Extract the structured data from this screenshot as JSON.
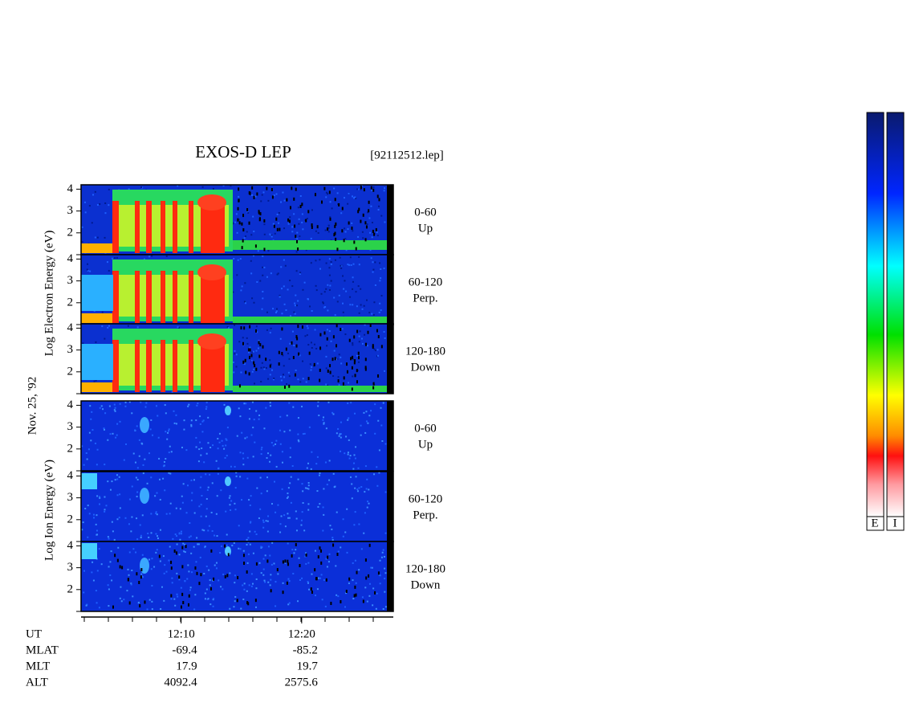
{
  "chart_data": {
    "type": "spectrogram",
    "title": "EXOS-D LEP",
    "file": "[92112512.lep]",
    "date": "Nov. 25, '92",
    "ylim": [
      1,
      4.2
    ],
    "yticks": [
      2,
      3,
      4
    ],
    "xlim": [
      1.7,
      27.6
    ],
    "xticks": [
      {
        "value": 10,
        "label": "12:10"
      },
      {
        "value": 20,
        "label": "12:20"
      }
    ],
    "groups": [
      {
        "ylabel": "Log Electron Energy (eV)",
        "panels": [
          {
            "label": "0-60",
            "sublabel": "Up"
          },
          {
            "label": "60-120",
            "sublabel": "Perp."
          },
          {
            "label": "120-180",
            "sublabel": "Down"
          }
        ]
      },
      {
        "ylabel": "Log Ion Energy (eV)",
        "panels": [
          {
            "label": "0-60",
            "sublabel": "Up"
          },
          {
            "label": "60-120",
            "sublabel": "Perp."
          },
          {
            "label": "120-180",
            "sublabel": "Down"
          }
        ]
      }
    ],
    "ephemeris": {
      "ut_label": "UT",
      "rows": [
        {
          "name": "MLAT",
          "values": [
            -69.4,
            -85.2
          ]
        },
        {
          "name": "MLT",
          "values": [
            17.9,
            19.7
          ]
        },
        {
          "name": "ALT",
          "values": [
            4092.4,
            2575.6
          ]
        }
      ]
    },
    "colorbars": [
      "E",
      "I"
    ]
  }
}
